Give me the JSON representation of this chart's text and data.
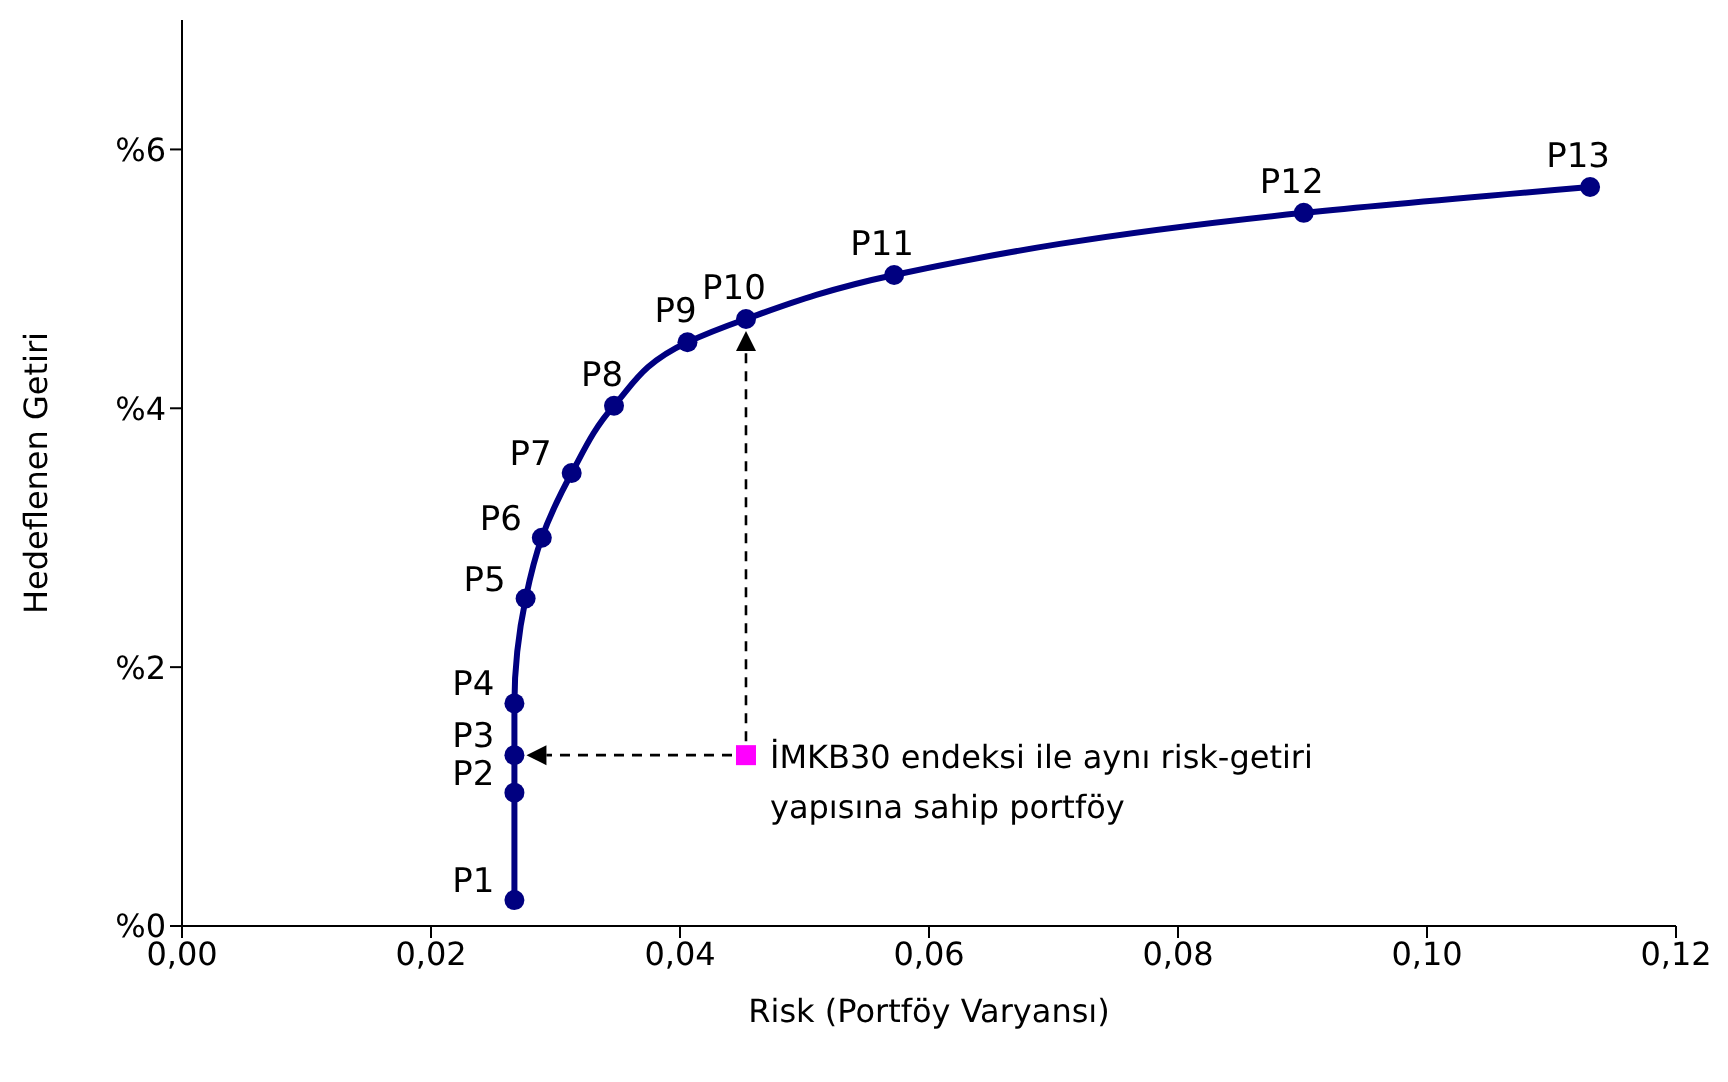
{
  "chart_data": {
    "type": "line",
    "xlabel": "Risk (Portföy Varyansı)",
    "ylabel": "Hedeflenen Getiri",
    "xlim": [
      0,
      0.12
    ],
    "xticks": [
      {
        "value": 0,
        "label": "0,00"
      },
      {
        "value": 0.02,
        "label": "0,02"
      },
      {
        "value": 0.04,
        "label": "0,04"
      },
      {
        "value": 0.06,
        "label": "0,06"
      },
      {
        "value": 0.08,
        "label": "0,08"
      },
      {
        "value": 0.1,
        "label": "0,10"
      },
      {
        "value": 0.12,
        "label": "0,12"
      }
    ],
    "ylim": [
      0,
      7
    ],
    "yticks": [
      {
        "value": 0,
        "label": "%0"
      },
      {
        "value": 2,
        "label": "%2"
      },
      {
        "value": 4,
        "label": "%4"
      },
      {
        "value": 6,
        "label": "%6"
      }
    ],
    "marker": "circle",
    "line_style": "solid",
    "series": [
      {
        "color": "#000080",
        "x": [
          0.0267,
          0.0267,
          0.0267,
          0.0267,
          0.0276,
          0.0289,
          0.0313,
          0.0347,
          0.0406,
          0.0453,
          0.0572,
          0.0901,
          0.1131
        ],
        "values": [
          0.2,
          1.03,
          1.32,
          1.72,
          2.53,
          3.0,
          3.5,
          4.02,
          4.51,
          4.69,
          5.03,
          5.51,
          5.71
        ],
        "value_labels": [
          "P1",
          "P2",
          "P3",
          "P4",
          "P5",
          "P6",
          "P7",
          "P8",
          "P9",
          "P10",
          "P11",
          "P12",
          "P13"
        ]
      },
      {
        "type": "scatter",
        "marker": "square",
        "color": "#ff00ff",
        "x": [
          0.0453
        ],
        "values": [
          1.32
        ]
      }
    ],
    "annotations": [
      {
        "text": "İMKB30 endeksi ile aynı risk-getiri yapısına sahip portföy",
        "x": 0.0453,
        "y": 1.32
      }
    ]
  }
}
